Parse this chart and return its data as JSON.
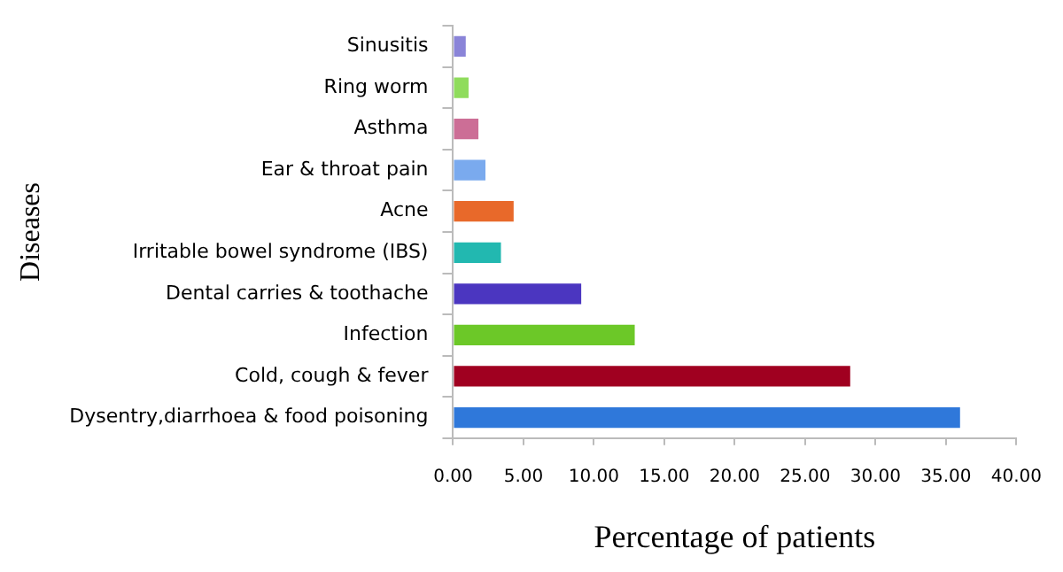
{
  "chart_data": {
    "type": "bar",
    "orientation": "horizontal",
    "xlabel": "Percentage of patients",
    "ylabel": "Diseases",
    "categories": [
      "Sinusitis",
      "Ring worm",
      "Asthma",
      "Ear & throat pain",
      "Acne",
      "Irritable bowel syndrome (IBS)",
      "Dental carries & toothache",
      "Infection",
      "Cold, cough & fever",
      "Dysentry,diarrhoea & food poisoning"
    ],
    "values": [
      0.9,
      1.1,
      1.8,
      2.3,
      4.3,
      3.4,
      9.1,
      12.9,
      28.2,
      36.0
    ],
    "colors": [
      "#8a84d8",
      "#8fdc5c",
      "#cc6e96",
      "#7aaaee",
      "#e8692a",
      "#22b8b0",
      "#4b36c0",
      "#6cc828",
      "#a00020",
      "#2f78da"
    ],
    "xlim": [
      0,
      40
    ],
    "xticks": [
      {
        "value": 0,
        "label": "0.00"
      },
      {
        "value": 5,
        "label": "5.00"
      },
      {
        "value": 10,
        "label": "10.00"
      },
      {
        "value": 15,
        "label": "15.00"
      },
      {
        "value": 20,
        "label": "20.00"
      },
      {
        "value": 25,
        "label": "25.00"
      },
      {
        "value": 30,
        "label": "30.00"
      },
      {
        "value": 35,
        "label": "35.00"
      },
      {
        "value": 40,
        "label": "40.00"
      }
    ],
    "grid": false,
    "legend": false
  }
}
